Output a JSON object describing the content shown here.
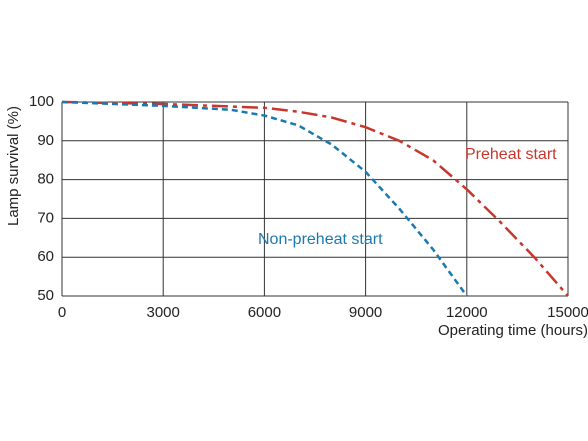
{
  "chart_data": {
    "type": "line",
    "y_label": "Lamp survival  (%)",
    "x_label": "Operating time (hours)",
    "series": [
      {
        "name": "Preheat start",
        "color": "#c8372d",
        "line_style": "dash-dot",
        "x": [
          0,
          3000,
          6000,
          7000,
          8000,
          9000,
          10000,
          11000,
          12000,
          13000,
          14000,
          15000
        ],
        "values": [
          100,
          99.5,
          98.5,
          97.5,
          96,
          93.5,
          90,
          85,
          77.5,
          69,
          60,
          50
        ]
      },
      {
        "name": "Non-preheat start",
        "color": "#1a7ab0",
        "line_style": "dashed",
        "x": [
          0,
          3000,
          5000,
          6000,
          7000,
          8000,
          9000,
          10000,
          11000,
          12000
        ],
        "values": [
          100,
          99,
          98,
          96.5,
          94,
          89,
          82,
          72.5,
          62,
          50
        ]
      }
    ],
    "xlim": [
      0,
      15000
    ],
    "xticks": [
      0,
      3000,
      6000,
      9000,
      12000,
      15000
    ],
    "ylim": [
      50,
      100
    ],
    "yticks": [
      50,
      60,
      70,
      80,
      90,
      100
    ],
    "grid": true
  }
}
